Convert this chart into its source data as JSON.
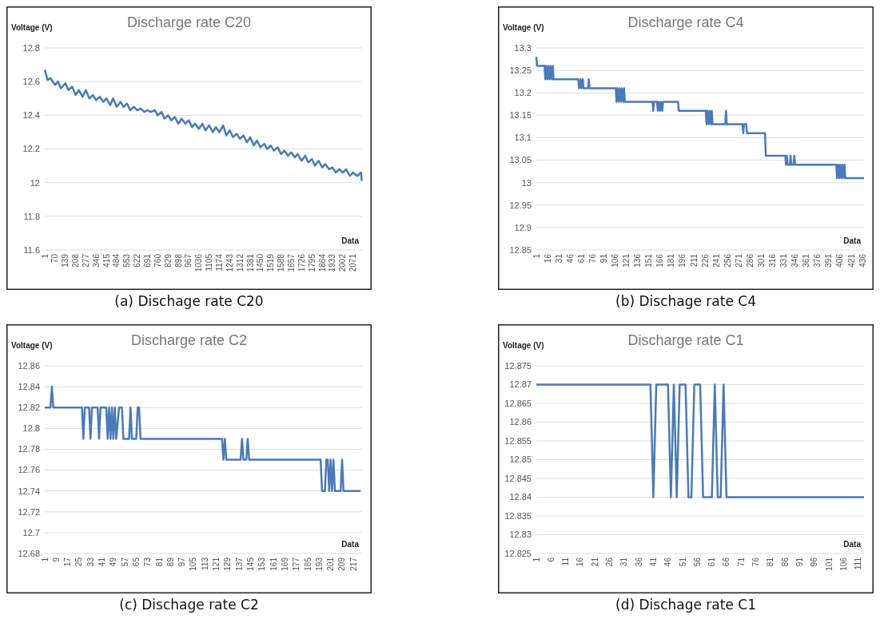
{
  "chart_data": [
    {
      "type": "line",
      "title": "Discharge rate C20",
      "xlabel": "Data",
      "ylabel": "Voltage (V)",
      "annotations": [
        "(a) Dischage rate C20"
      ],
      "grid": "y",
      "xlim": [
        1,
        2132
      ],
      "xticks": [
        1,
        70,
        139,
        208,
        277,
        346,
        415,
        484,
        553,
        622,
        691,
        760,
        829,
        898,
        967,
        1036,
        1105,
        1174,
        1243,
        1312,
        1381,
        1450,
        1519,
        1588,
        1657,
        1726,
        1795,
        1864,
        1933,
        2002,
        2071
      ],
      "ylim": [
        11.6,
        12.8
      ],
      "yticks": [
        11.6,
        11.8,
        12,
        12.2,
        12.4,
        12.6,
        12.8
      ],
      "series": [
        {
          "color": "#4a7ab8",
          "x": [
            1,
            20,
            40,
            70,
            90,
            110,
            139,
            160,
            185,
            208,
            230,
            255,
            277,
            300,
            325,
            346,
            370,
            395,
            415,
            440,
            460,
            484,
            510,
            530,
            553,
            575,
            600,
            622,
            645,
            670,
            691,
            715,
            740,
            760,
            785,
            805,
            829,
            850,
            875,
            898,
            920,
            945,
            967,
            990,
            1010,
            1036,
            1060,
            1080,
            1105,
            1130,
            1150,
            1174,
            1200,
            1220,
            1243,
            1265,
            1290,
            1312,
            1335,
            1360,
            1381,
            1405,
            1425,
            1450,
            1475,
            1495,
            1519,
            1540,
            1565,
            1588,
            1610,
            1635,
            1657,
            1680,
            1700,
            1726,
            1750,
            1770,
            1795,
            1815,
            1840,
            1864,
            1885,
            1910,
            1933,
            1955,
            1980,
            2002,
            2025,
            2050,
            2071,
            2100,
            2125,
            2130
          ],
          "values": [
            12.67,
            12.61,
            12.62,
            12.58,
            12.6,
            12.56,
            12.59,
            12.55,
            12.57,
            12.52,
            12.55,
            12.51,
            12.55,
            12.5,
            12.52,
            12.49,
            12.51,
            12.48,
            12.5,
            12.46,
            12.5,
            12.45,
            12.48,
            12.45,
            12.47,
            12.43,
            12.45,
            12.43,
            12.44,
            12.42,
            12.43,
            12.42,
            12.43,
            12.4,
            12.42,
            12.38,
            12.4,
            12.37,
            12.39,
            12.35,
            12.38,
            12.35,
            12.37,
            12.33,
            12.35,
            12.32,
            12.35,
            12.31,
            12.34,
            12.3,
            12.33,
            12.3,
            12.34,
            12.28,
            12.31,
            12.27,
            12.29,
            12.26,
            12.28,
            12.24,
            12.27,
            12.22,
            12.25,
            12.21,
            12.23,
            12.2,
            12.22,
            12.19,
            12.21,
            12.17,
            12.19,
            12.16,
            12.18,
            12.15,
            12.17,
            12.13,
            12.16,
            12.12,
            12.14,
            12.1,
            12.13,
            12.09,
            12.11,
            12.08,
            12.09,
            12.06,
            12.08,
            12.06,
            12.08,
            12.04,
            12.06,
            12.04,
            12.06,
            12.01
          ]
        }
      ]
    },
    {
      "type": "line",
      "title": "Discharge rate C4",
      "xlabel": "Data",
      "ylabel": "Voltage (V)",
      "annotations": [
        "(b) Dischage rate C4"
      ],
      "grid": "y",
      "xlim": [
        1,
        438
      ],
      "xticks": [
        1,
        16,
        31,
        46,
        61,
        76,
        91,
        106,
        121,
        136,
        151,
        166,
        181,
        196,
        211,
        226,
        241,
        256,
        271,
        286,
        301,
        316,
        331,
        346,
        361,
        376,
        391,
        406,
        421,
        436
      ],
      "ylim": [
        12.85,
        13.3
      ],
      "yticks": [
        12.85,
        12.9,
        12.95,
        13,
        13.05,
        13.1,
        13.15,
        13.2,
        13.25,
        13.3
      ],
      "series": [
        {
          "color": "#4a7ab8",
          "x": [
            1,
            2,
            12,
            13,
            14,
            16,
            17,
            19,
            20,
            22,
            23,
            24,
            57,
            58,
            60,
            61,
            63,
            64,
            70,
            71,
            72,
            107,
            108,
            109,
            111,
            112,
            114,
            115,
            117,
            118,
            119,
            156,
            157,
            158,
            162,
            163,
            164,
            166,
            167,
            169,
            170,
            190,
            191,
            227,
            228,
            229,
            231,
            232,
            234,
            235,
            236,
            253,
            254,
            255,
            276,
            277,
            278,
            281,
            282,
            306,
            307,
            333,
            334,
            335,
            336,
            339,
            340,
            341,
            344,
            345,
            346,
            401,
            402,
            403,
            405,
            406,
            408,
            409,
            411,
            412,
            413,
            438
          ],
          "values": [
            13.28,
            13.26,
            13.26,
            13.23,
            13.26,
            13.23,
            13.26,
            13.23,
            13.26,
            13.23,
            13.26,
            13.23,
            13.23,
            13.21,
            13.23,
            13.21,
            13.23,
            13.21,
            13.21,
            13.23,
            13.21,
            13.21,
            13.18,
            13.21,
            13.18,
            13.21,
            13.18,
            13.21,
            13.18,
            13.21,
            13.18,
            13.18,
            13.16,
            13.18,
            13.18,
            13.16,
            13.18,
            13.16,
            13.18,
            13.16,
            13.18,
            13.18,
            13.16,
            13.16,
            13.13,
            13.16,
            13.13,
            13.16,
            13.13,
            13.16,
            13.13,
            13.13,
            13.16,
            13.13,
            13.13,
            13.11,
            13.13,
            13.13,
            13.11,
            13.11,
            13.06,
            13.06,
            13.04,
            13.06,
            13.04,
            13.04,
            13.06,
            13.04,
            13.04,
            13.06,
            13.04,
            13.04,
            13.01,
            13.04,
            13.01,
            13.04,
            13.01,
            13.04,
            13.01,
            13.04,
            13.01,
            13.01
          ]
        }
      ]
    },
    {
      "type": "line",
      "title": "Discharge rate C2",
      "xlabel": "Data",
      "ylabel": "Voltage (V)",
      "annotations": [
        "(c) Dischage rate C2"
      ],
      "grid": "y",
      "xlim": [
        1,
        223
      ],
      "xticks": [
        1,
        9,
        17,
        25,
        33,
        41,
        49,
        57,
        65,
        73,
        81,
        89,
        97,
        105,
        113,
        121,
        129,
        137,
        145,
        153,
        161,
        169,
        177,
        185,
        193,
        201,
        209,
        217
      ],
      "ylim": [
        12.68,
        12.86
      ],
      "yticks": [
        12.68,
        12.7,
        12.72,
        12.74,
        12.76,
        12.78,
        12.8,
        12.82,
        12.84,
        12.86
      ],
      "series": [
        {
          "color": "#4a7ab8",
          "x": [
            1,
            5,
            6,
            7,
            27,
            28,
            29,
            32,
            33,
            34,
            38,
            39,
            40,
            44,
            45,
            46,
            47,
            48,
            49,
            50,
            51,
            53,
            55,
            56,
            60,
            61,
            62,
            65,
            66,
            67,
            68,
            125,
            126,
            127,
            128,
            138,
            139,
            140,
            142,
            143,
            144,
            194,
            195,
            197,
            198,
            199,
            200,
            201,
            202,
            203,
            204,
            208,
            209,
            210,
            222
          ],
          "values": [
            12.82,
            12.82,
            12.84,
            12.82,
            12.82,
            12.79,
            12.82,
            12.82,
            12.79,
            12.82,
            12.82,
            12.79,
            12.82,
            12.82,
            12.79,
            12.82,
            12.79,
            12.82,
            12.79,
            12.82,
            12.79,
            12.82,
            12.82,
            12.79,
            12.79,
            12.82,
            12.79,
            12.79,
            12.82,
            12.82,
            12.79,
            12.79,
            12.77,
            12.79,
            12.77,
            12.77,
            12.79,
            12.77,
            12.77,
            12.79,
            12.77,
            12.77,
            12.74,
            12.74,
            12.77,
            12.77,
            12.74,
            12.77,
            12.74,
            12.77,
            12.74,
            12.74,
            12.77,
            12.74,
            12.74
          ]
        }
      ]
    },
    {
      "type": "line",
      "title": "Discharge rate C1",
      "xlabel": "Data",
      "ylabel": "Voltage (V)",
      "annotations": [
        "(d) Dischage rate C1"
      ],
      "grid": "y",
      "xlim": [
        1,
        113
      ],
      "xticks": [
        1,
        6,
        11,
        16,
        21,
        26,
        31,
        36,
        41,
        46,
        51,
        56,
        61,
        66,
        71,
        76,
        81,
        86,
        91,
        96,
        101,
        106,
        111
      ],
      "ylim": [
        12.825,
        12.875
      ],
      "yticks": [
        12.825,
        12.83,
        12.835,
        12.84,
        12.845,
        12.85,
        12.855,
        12.86,
        12.865,
        12.87,
        12.875
      ],
      "series": [
        {
          "color": "#4a7ab8",
          "x": [
            1,
            40,
            41,
            42,
            46,
            47,
            48,
            49,
            50,
            52,
            53,
            54,
            55,
            57,
            58,
            61,
            62,
            63,
            64,
            65,
            66,
            113
          ],
          "values": [
            12.87,
            12.87,
            12.84,
            12.87,
            12.87,
            12.84,
            12.87,
            12.84,
            12.87,
            12.87,
            12.84,
            12.84,
            12.87,
            12.87,
            12.84,
            12.84,
            12.87,
            12.84,
            12.84,
            12.87,
            12.84,
            12.84
          ]
        }
      ]
    }
  ]
}
